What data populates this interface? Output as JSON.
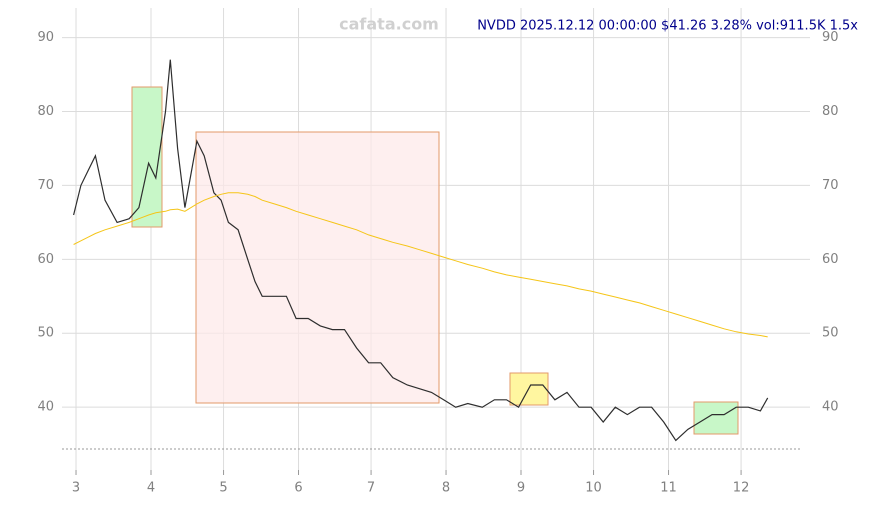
{
  "chart_data": {
    "type": "line",
    "title": "NVDD 2025.12.12 00:00:00 $41.26 3.28% vol:911.5K 1.5x",
    "watermark": "cafata.com",
    "x": [
      59,
      62,
      65,
      68,
      72,
      77,
      82,
      86,
      90,
      93,
      97,
      99,
      102,
      105,
      110,
      113,
      117,
      120,
      123,
      127,
      131,
      134,
      137,
      142,
      147,
      151,
      156,
      161,
      166,
      171,
      176,
      181,
      186,
      191,
      197,
      202,
      207,
      212,
      217,
      222,
      228,
      233,
      238,
      243,
      248,
      253,
      258,
      263,
      268,
      273,
      278,
      283,
      288,
      293,
      298,
      303,
      308,
      313,
      318,
      323,
      328,
      333,
      338,
      343,
      346
    ],
    "series": [
      {
        "color": "#2e2e2e",
        "values": [
          66,
          70,
          72,
          74,
          68,
          65,
          65.5,
          67,
          73,
          71,
          80,
          87,
          75,
          67,
          76,
          74,
          69,
          68,
          65,
          64,
          60,
          57,
          55,
          55,
          55,
          52,
          52,
          51,
          50.5,
          50.5,
          48,
          46,
          46,
          44,
          43,
          42.5,
          42,
          41,
          40,
          40.5,
          40,
          41,
          41,
          40,
          43,
          43,
          41,
          42,
          40,
          40,
          38,
          40,
          39,
          40,
          40,
          38,
          35.5,
          37,
          38,
          39,
          39,
          40,
          40,
          39.5,
          41.26
        ]
      },
      {
        "color": "#f5c518",
        "values": [
          62,
          62.5,
          63,
          63.5,
          64,
          64.5,
          65,
          65.5,
          66,
          66.3,
          66.5,
          66.7,
          66.8,
          66.5,
          67.5,
          68,
          68.5,
          68.8,
          69,
          69,
          68.8,
          68.5,
          68,
          67.5,
          67,
          66.5,
          66,
          65.5,
          65,
          64.5,
          64,
          63.3,
          62.8,
          62.3,
          61.8,
          61.3,
          60.8,
          60.3,
          59.8,
          59.3,
          58.8,
          58.3,
          57.9,
          57.6,
          57.3,
          57,
          56.7,
          56.4,
          56,
          55.7,
          55.3,
          54.9,
          54.5,
          54.1,
          53.6,
          53.1,
          52.6,
          52.1,
          51.6,
          51.1,
          50.6,
          50.2,
          49.9,
          49.7,
          49.5
        ]
      }
    ],
    "xlim": [
      54.2,
      363.5
    ],
    "xticks": [
      {
        "value": 60,
        "label": "3"
      },
      {
        "value": 91,
        "label": "4"
      },
      {
        "value": 121,
        "label": "5"
      },
      {
        "value": 152,
        "label": "6"
      },
      {
        "value": 182,
        "label": "7"
      },
      {
        "value": 213,
        "label": "8"
      },
      {
        "value": 244,
        "label": "9"
      },
      {
        "value": 274,
        "label": "10"
      },
      {
        "value": 305,
        "label": "11"
      },
      {
        "value": 335,
        "label": "12"
      }
    ],
    "ylim": [
      31.5,
      94
    ],
    "yticks": [
      40,
      50,
      60,
      70,
      80,
      90
    ],
    "grid": true
  }
}
